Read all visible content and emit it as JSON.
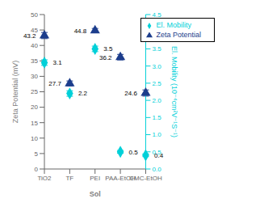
{
  "chart_data": {
    "type": "scatter",
    "xlabel": "Sol",
    "ylabel": "Zeta Potential (mV)",
    "y2label": "El. Mobility (10⁻⁴cm²V⁻¹S⁻¹)",
    "categories": [
      "TiO2",
      "TF",
      "PEI",
      "PAA-EtOH",
      "CMC-EtOH"
    ],
    "series": [
      {
        "name": "Zeta Potential",
        "color": "#1c3d8c",
        "marker": "triangle",
        "values": [
          43.2,
          27.7,
          44.8,
          36.2,
          24.6
        ],
        "errors": [
          1.0,
          0.8,
          0.7,
          0.9,
          1.0
        ]
      },
      {
        "name": "El. Mobility",
        "color": "#00d0d8",
        "marker": "diamond",
        "axis": "y2",
        "values": [
          3.1,
          2.2,
          3.5,
          0.5,
          0.4
        ],
        "errors": [
          0.08,
          0.08,
          0.08,
          0.04,
          0.04
        ]
      }
    ],
    "ylim": [
      0,
      50
    ],
    "yticks": [
      0,
      5,
      10,
      15,
      20,
      25,
      30,
      35,
      40,
      45,
      50
    ],
    "y2lim": [
      0,
      4.5
    ],
    "y2ticks": [
      {
        "value": 0,
        "label": "0.0"
      },
      0.5,
      {
        "value": 1,
        "label": "1.0"
      },
      1.5,
      {
        "value": 2,
        "label": "2.0"
      },
      2.5,
      {
        "value": 3,
        "label": "3.0"
      },
      3.5,
      {
        "value": 4,
        "label": "4.0"
      },
      4.5
    ],
    "legend": "upper right",
    "grid": false,
    "data_labels": true
  }
}
